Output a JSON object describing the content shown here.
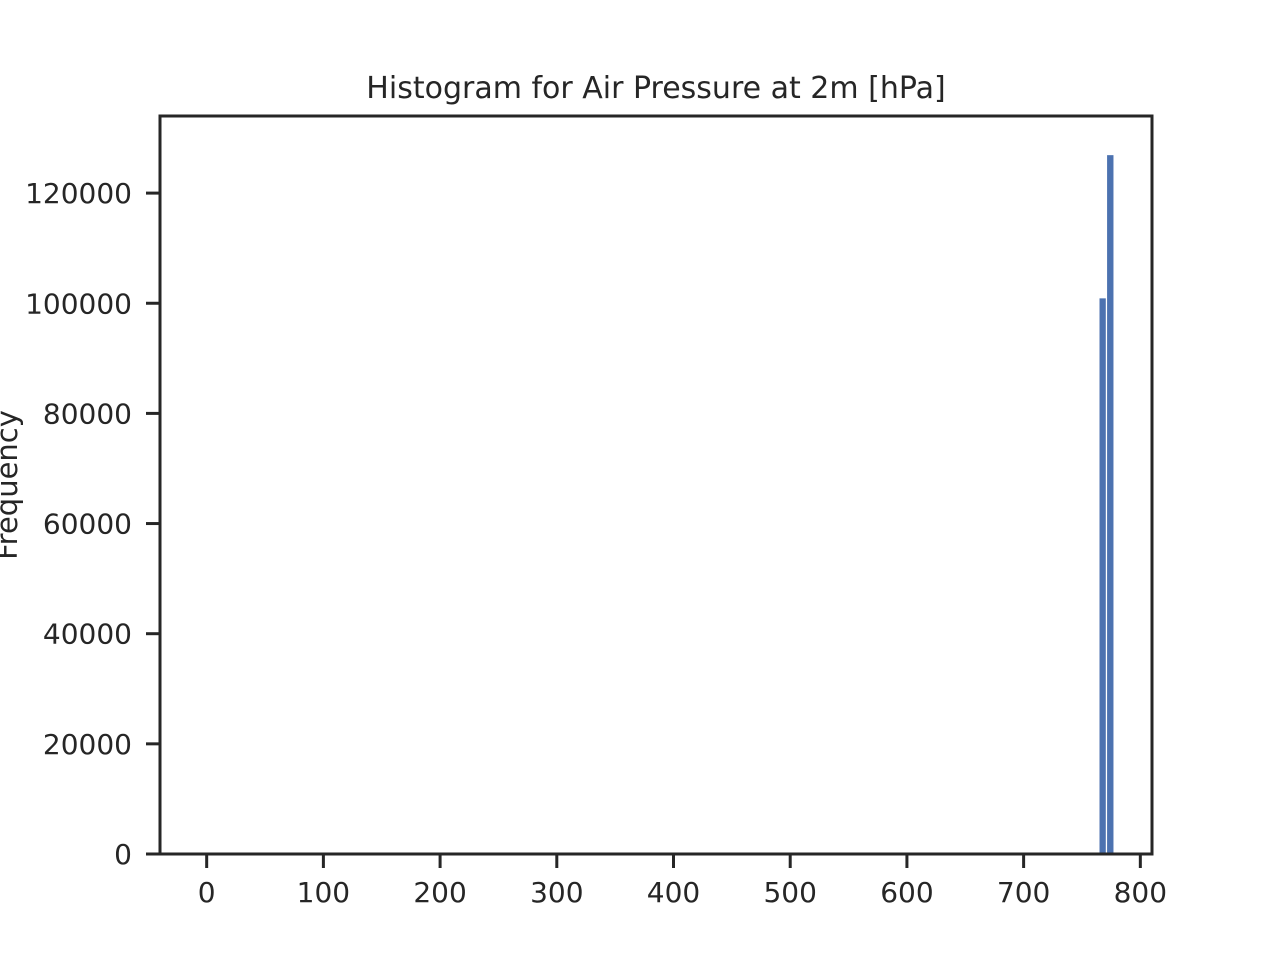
{
  "chart_data": {
    "type": "bar",
    "title": "Histogram for Air Pressure at 2m [hPa]",
    "xlabel": "",
    "ylabel": "Frequency",
    "xlim": [
      -40,
      810
    ],
    "ylim": [
      0,
      134000
    ],
    "x_ticks": [
      0,
      100,
      200,
      300,
      400,
      500,
      600,
      700,
      800
    ],
    "x_tick_labels": [
      "0",
      "100",
      "200",
      "300",
      "400",
      "500",
      "600",
      "700",
      "800"
    ],
    "y_ticks": [
      0,
      20000,
      40000,
      60000,
      80000,
      100000,
      120000
    ],
    "y_tick_labels": [
      "0",
      "20000",
      "40000",
      "60000",
      "80000",
      "100000",
      "120000"
    ],
    "grid": false,
    "bar_color": "#4c72b0",
    "bins": [
      {
        "start": 764.5,
        "end": 771.0,
        "value": 101000
      },
      {
        "start": 771.0,
        "end": 777.5,
        "value": 127000
      }
    ]
  }
}
